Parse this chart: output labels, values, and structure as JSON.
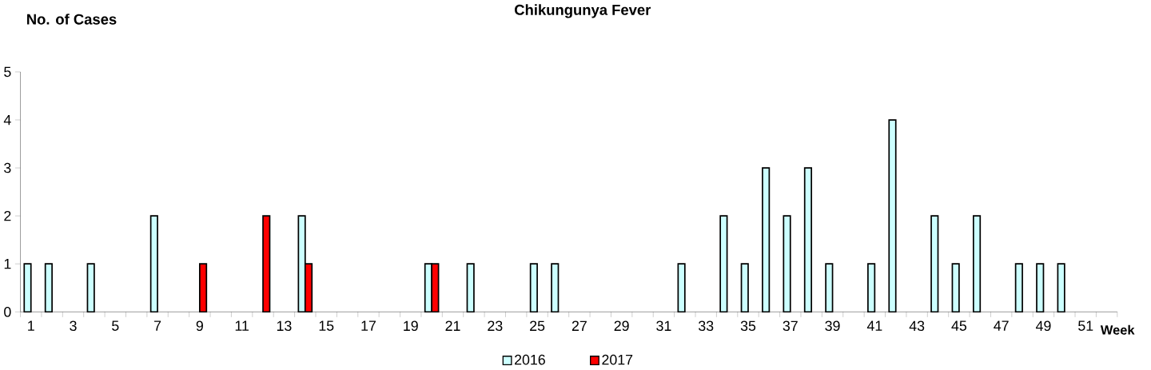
{
  "chart_data": {
    "type": "bar",
    "title": "Chikungunya Fever",
    "ylabel": "No. of Cases",
    "xlabel": "Week",
    "categories": [
      "1",
      null,
      "3",
      null,
      "5",
      null,
      "7",
      null,
      "9",
      null,
      "11",
      null,
      "13",
      null,
      "15",
      null,
      "17",
      null,
      "19",
      null,
      "21",
      null,
      "23",
      null,
      "25",
      null,
      "27",
      null,
      "29",
      null,
      "31",
      null,
      "33",
      null,
      "35",
      null,
      "37",
      null,
      "39",
      null,
      "41",
      null,
      "43",
      null,
      "45",
      null,
      "47",
      null,
      "49",
      null,
      "51",
      null
    ],
    "series": [
      {
        "name": "2016",
        "color": "#ccffff",
        "values": [
          1,
          1,
          0,
          1,
          0,
          0,
          2,
          0,
          0,
          0,
          0,
          0,
          0,
          2,
          0,
          0,
          0,
          0,
          0,
          1,
          0,
          1,
          0,
          0,
          1,
          1,
          0,
          0,
          0,
          0,
          0,
          1,
          0,
          2,
          1,
          3,
          2,
          3,
          1,
          0,
          1,
          4,
          0,
          2,
          1,
          2,
          0,
          1,
          1,
          1,
          0,
          0
        ]
      },
      {
        "name": "2017",
        "color": "#ff0000",
        "values": [
          0,
          0,
          0,
          0,
          0,
          0,
          0,
          0,
          1,
          0,
          0,
          2,
          0,
          1,
          0,
          0,
          0,
          0,
          0,
          1,
          0,
          0,
          0,
          0,
          0,
          0,
          0,
          0,
          0,
          0,
          0,
          0,
          0,
          0,
          0,
          0,
          0,
          0,
          0,
          0,
          0,
          0,
          0,
          0,
          0,
          0,
          0,
          0,
          0,
          0,
          0,
          0
        ]
      }
    ],
    "ylim": [
      0,
      5
    ],
    "yticks": [
      0,
      1,
      2,
      3,
      4,
      5
    ],
    "legend": "bottom",
    "grid": false
  }
}
